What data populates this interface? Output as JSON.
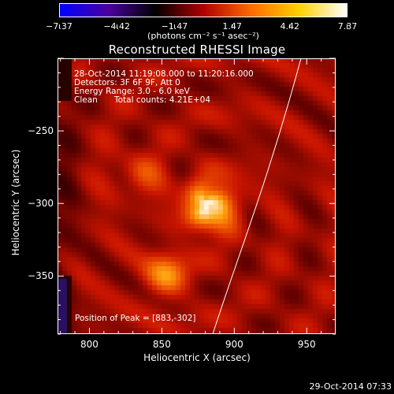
{
  "colorbar": {
    "ticks": [
      "−7.37",
      "−4.42",
      "−1.47",
      "1.47",
      "4.42",
      "7.37"
    ],
    "units": "(photons cm⁻² s⁻¹ asec⁻²)",
    "range": [
      -7.37,
      7.37
    ],
    "colors": [
      "#0000ff",
      "#4a00a0",
      "#000000",
      "#b00000",
      "#ff6a00",
      "#ffd000",
      "#ffffff"
    ]
  },
  "plot": {
    "title": "Reconstructed RHESSI Image",
    "info_line1": "28-Oct-2014 11:19:08.000 to 11:20:16.000",
    "info_line2": "Detectors: 3F 6F 9F, Att 0",
    "info_line3": "Energy Range: 3.0 - 6.0 keV",
    "info_line4_a": "Clean",
    "info_line4_b": "Total counts: 4.21E+04",
    "peak_text": "Position of Peak = [883,-302]",
    "peak_position": [
      883,
      -302
    ],
    "x_axis_title": "Heliocentric X (arcsec)",
    "y_axis_title": "Heliocentric Y (arcsec)",
    "x_ticks": [
      "800",
      "850",
      "900",
      "950"
    ],
    "y_ticks": [
      "−250",
      "−300",
      "−350"
    ],
    "x_range": [
      778,
      970
    ],
    "y_range": [
      -390,
      -200
    ],
    "sources": [
      {
        "x": 883,
        "y": -302,
        "peak": 1.0
      },
      {
        "x": 853,
        "y": -350,
        "peak": 0.65
      },
      {
        "x": 836,
        "y": -280,
        "peak": 0.35
      }
    ]
  },
  "footer": {
    "date": "29-Oct-2014 07:33"
  }
}
